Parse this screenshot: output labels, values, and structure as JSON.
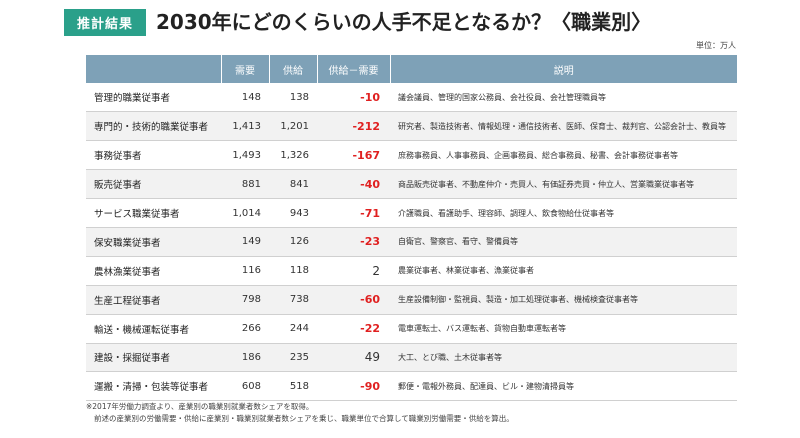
{
  "badge": "推計結果",
  "title": "2030年にどのくらいの人手不足となるか？〈職業別〉",
  "unit": "単位：万人",
  "table": {
    "headers": [
      "",
      "需要",
      "供給",
      "供給－需要",
      "説明"
    ],
    "rows": [
      {
        "category": "管理的職業従事者",
        "demand": "148",
        "supply": "138",
        "diff": "-10",
        "neg": true,
        "desc": "議会議員、管理的国家公務員、会社役員、会社管理職員等"
      },
      {
        "category": "専門的・技術的職業従事者",
        "demand": "1,413",
        "supply": "1,201",
        "diff": "-212",
        "neg": true,
        "desc": "研究者、製造技術者、情報処理・通信技術者、医師、保育士、裁判官、公認会計士、教員等"
      },
      {
        "category": "事務従事者",
        "demand": "1,493",
        "supply": "1,326",
        "diff": "-167",
        "neg": true,
        "desc": "庶務事務員、人事事務員、企画事務員、総合事務員、秘書、会計事務従事者等"
      },
      {
        "category": "販売従事者",
        "demand": "881",
        "supply": "841",
        "diff": "-40",
        "neg": true,
        "desc": "商品販売従事者、不動産仲介・売買人、有価証券売買・仲立人、営業職業従事者等"
      },
      {
        "category": "サービス職業従事者",
        "demand": "1,014",
        "supply": "943",
        "diff": "-71",
        "neg": true,
        "desc": "介護職員、看護助手、理容師、調理人、飲食物給仕従事者等"
      },
      {
        "category": "保安職業従事者",
        "demand": "149",
        "supply": "126",
        "diff": "-23",
        "neg": true,
        "desc": "自衛官、警察官、看守、警備員等"
      },
      {
        "category": "農林漁業従事者",
        "demand": "116",
        "supply": "118",
        "diff": "2",
        "neg": false,
        "desc": "農業従事者、林業従事者、漁業従事者"
      },
      {
        "category": "生産工程従事者",
        "demand": "798",
        "supply": "738",
        "diff": "-60",
        "neg": true,
        "desc": "生産設備制御・監視員、製造・加工処理従事者、機械検査従事者等"
      },
      {
        "category": "輸送・機械運転従事者",
        "demand": "266",
        "supply": "244",
        "diff": "-22",
        "neg": true,
        "desc": "電車運転士、バス運転者、貨物自動車運転者等"
      },
      {
        "category": "建設・採掘従事者",
        "demand": "186",
        "supply": "235",
        "diff": "49",
        "neg": false,
        "desc": "大工、とび職、土木従事者等"
      },
      {
        "category": "運搬・清掃・包装等従事者",
        "demand": "608",
        "supply": "518",
        "diff": "-90",
        "neg": true,
        "desc": "郵便・電報外務員、配達員、ビル・建物清掃員等"
      }
    ]
  },
  "notes": [
    "※2017年労働力調査より、産業別の職業別就業者数シェアを取得。",
    "前述の産業別の労働需要・供給に産業別・職業別就業者数シェアを乗じ、職業単位で合算して職業別労働需要・供給を算出。"
  ],
  "colors": {
    "accent": "#2aa08a",
    "header": "#7ea1b7",
    "negative": "#e02020"
  }
}
